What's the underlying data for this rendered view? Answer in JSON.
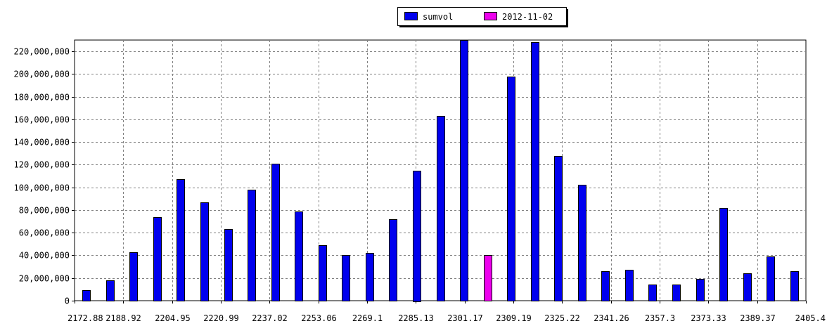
{
  "chart_data": {
    "type": "bar",
    "title": "",
    "xlabel": "",
    "ylabel": "",
    "ylim": [
      0,
      230000000
    ],
    "grid": true,
    "legend_position": "top-center",
    "y_ticks": [
      "0",
      "20,000,000",
      "40,000,000",
      "60,000,000",
      "80,000,000",
      "100,000,000",
      "120,000,000",
      "140,000,000",
      "160,000,000",
      "180,000,000",
      "200,000,000",
      "220,000,000"
    ],
    "y_tick_values": [
      0,
      20000000,
      40000000,
      60000000,
      80000000,
      100000000,
      120000000,
      140000000,
      160000000,
      180000000,
      200000000,
      220000000
    ],
    "x_tick_labels": [
      "2172.88",
      "2188.92",
      "2204.95",
      "2220.99",
      "2237.02",
      "2253.06",
      "2269.1",
      "2285.13",
      "2301.17",
      "2309.19",
      "2325.22",
      "2341.26",
      "2357.3",
      "2373.33",
      "2389.37",
      "2405.4"
    ],
    "series": [
      {
        "name": "sumvol",
        "color": "#0000ee",
        "values": [
          9000000,
          18000000,
          43000000,
          74000000,
          107000000,
          87000000,
          63000000,
          98000000,
          121000000,
          79000000,
          49000000,
          40000000,
          42000000,
          72000000,
          115000000,
          163000000,
          230000000,
          0,
          198000000,
          228000000,
          128000000,
          102000000,
          26000000,
          27000000,
          14000000,
          14000000,
          19000000,
          82000000,
          24000000,
          39000000,
          26000000
        ]
      },
      {
        "name": "2012-11-02",
        "color": "#ee00ee",
        "values": [
          0,
          0,
          0,
          0,
          0,
          0,
          0,
          0,
          0,
          0,
          0,
          0,
          0,
          0,
          0,
          0,
          0,
          40000000,
          0,
          0,
          0,
          0,
          0,
          0,
          0,
          0,
          0,
          0,
          0,
          0,
          0
        ]
      }
    ]
  }
}
